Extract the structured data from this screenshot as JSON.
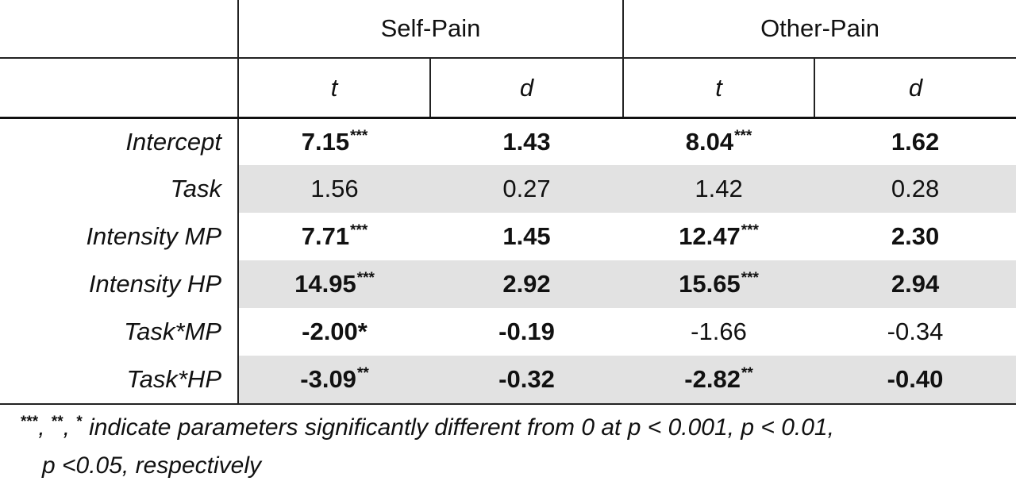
{
  "header": {
    "groups": [
      "Self-Pain",
      "Other-Pain"
    ],
    "subcols": [
      "t",
      "d",
      "t",
      "d"
    ]
  },
  "rows": [
    {
      "label": "Intercept",
      "cells": [
        {
          "v": "7.15",
          "sup": "***",
          "bold": true
        },
        {
          "v": "1.43",
          "sup": "",
          "bold": true
        },
        {
          "v": "8.04",
          "sup": "***",
          "bold": true
        },
        {
          "v": "1.62",
          "sup": "",
          "bold": true
        }
      ],
      "shaded": false
    },
    {
      "label": "Task",
      "cells": [
        {
          "v": "1.56",
          "sup": "",
          "bold": false
        },
        {
          "v": "0.27",
          "sup": "",
          "bold": false
        },
        {
          "v": "1.42",
          "sup": "",
          "bold": false
        },
        {
          "v": "0.28",
          "sup": "",
          "bold": false
        }
      ],
      "shaded": true
    },
    {
      "label": "Intensity MP",
      "cells": [
        {
          "v": "7.71",
          "sup": "***",
          "bold": true
        },
        {
          "v": "1.45",
          "sup": "",
          "bold": true
        },
        {
          "v": "12.47",
          "sup": "***",
          "bold": true
        },
        {
          "v": "2.30",
          "sup": "",
          "bold": true
        }
      ],
      "shaded": false
    },
    {
      "label": "Intensity HP",
      "cells": [
        {
          "v": "14.95",
          "sup": "***",
          "bold": true
        },
        {
          "v": "2.92",
          "sup": "",
          "bold": true
        },
        {
          "v": "15.65",
          "sup": "***",
          "bold": true
        },
        {
          "v": "2.94",
          "sup": "",
          "bold": true
        }
      ],
      "shaded": true
    },
    {
      "label": "Task*MP",
      "cells": [
        {
          "v": "-2.00*",
          "sup": "",
          "bold": true
        },
        {
          "v": "-0.19",
          "sup": "",
          "bold": true
        },
        {
          "v": "-1.66",
          "sup": "",
          "bold": false
        },
        {
          "v": "-0.34",
          "sup": "",
          "bold": false
        }
      ],
      "shaded": false
    },
    {
      "label": "Task*HP",
      "cells": [
        {
          "v": "-3.09",
          "sup": "**",
          "bold": true
        },
        {
          "v": "-0.32",
          "sup": "",
          "bold": true
        },
        {
          "v": "-2.82",
          "sup": "**",
          "bold": true
        },
        {
          "v": "-0.40",
          "sup": "",
          "bold": true
        }
      ],
      "shaded": true
    }
  ],
  "footnote": {
    "sup1": "***",
    "sep1": ", ",
    "sup2": "**",
    "sep2": ", ",
    "sup3": "*",
    "line1": " indicate parameters significantly different from 0 at p < 0.001, p < 0.01,",
    "line2": "p <0.05, respectively"
  }
}
